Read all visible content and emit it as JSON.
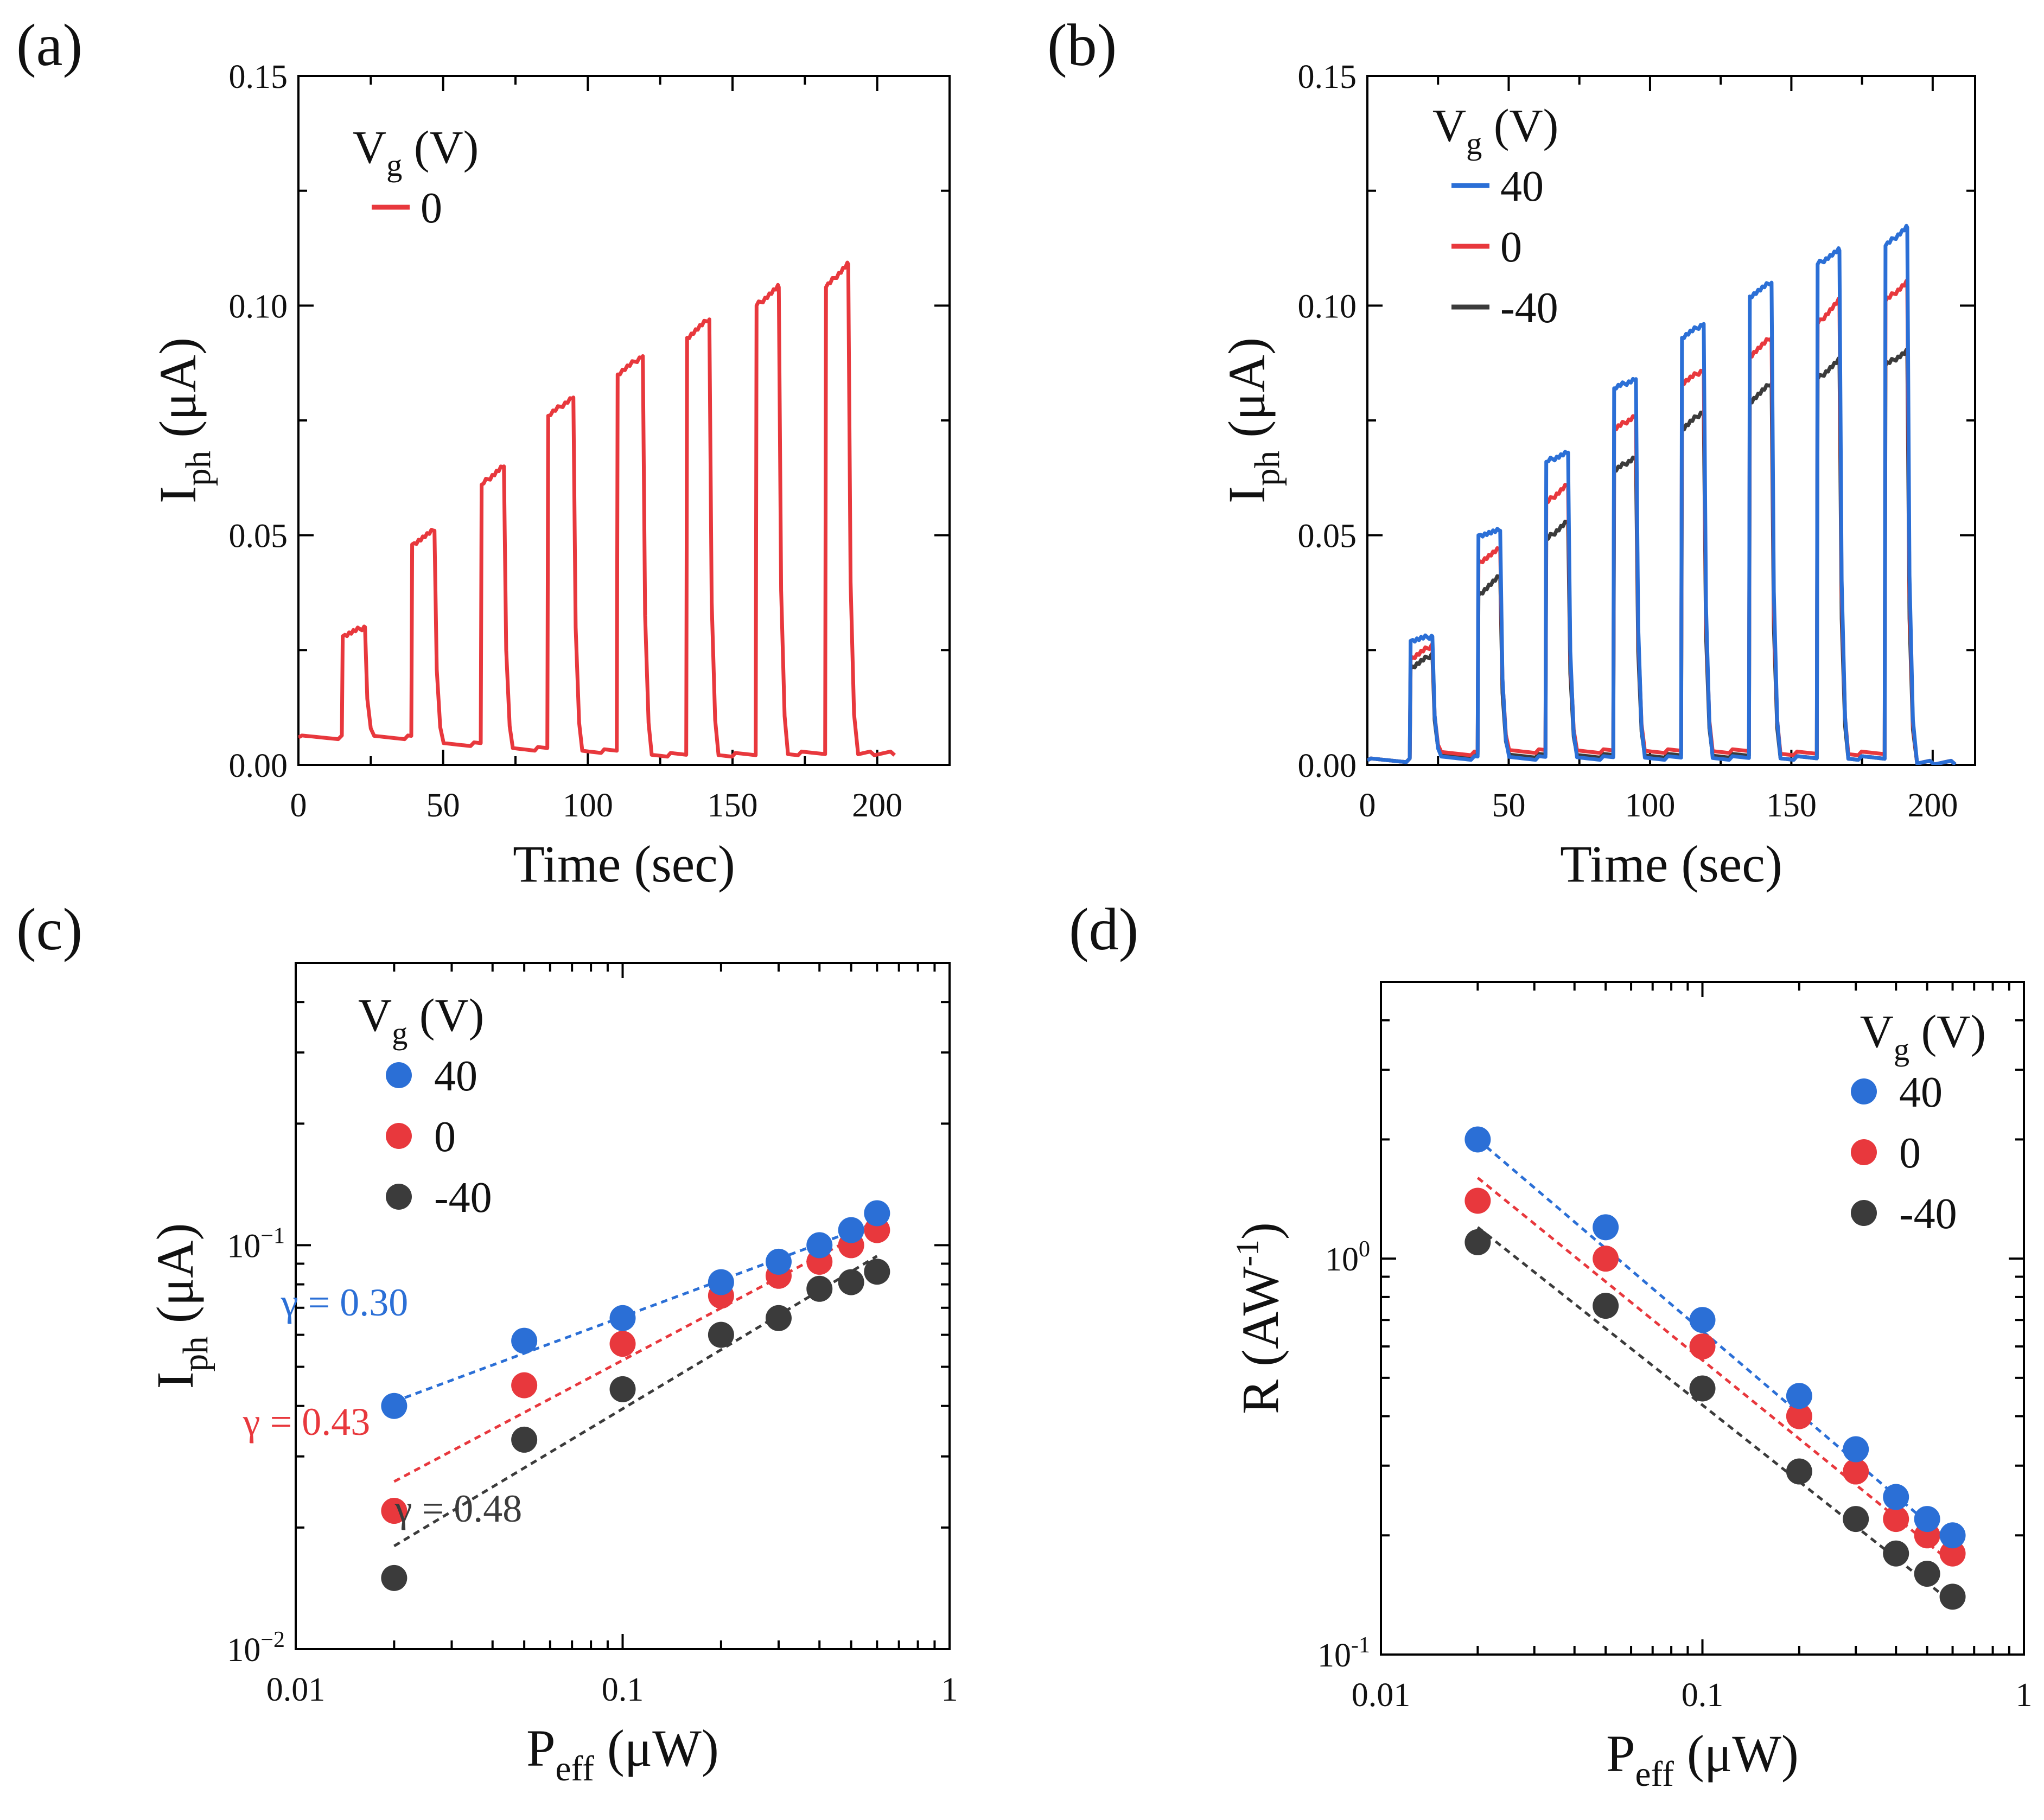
{
  "figure": {
    "panel_labels": [
      "(a)",
      "(b)",
      "(c)",
      "(d)"
    ]
  },
  "chart_data": [
    {
      "panel": "(a)",
      "type": "line",
      "title": "",
      "xlabel": "Time (sec)",
      "ylabel": "I_ph (μA)",
      "ylabel_main": "I",
      "ylabel_sub": "ph",
      "ylabel_rest": " (μA)",
      "xlim": [
        0,
        225
      ],
      "ylim": [
        0.0,
        0.15
      ],
      "xticks": [
        0,
        50,
        100,
        150,
        200
      ],
      "xtick_labels": [
        "0",
        "50",
        "100",
        "150",
        "200"
      ],
      "yticks": [
        0.0,
        0.05,
        0.1,
        0.15
      ],
      "ytick_labels": [
        "0.00",
        "0.05",
        "0.10",
        "0.15"
      ],
      "legend": {
        "title_main": "V",
        "title_sub": "g",
        "title_rest": " (V)",
        "position": "top-left"
      },
      "pulses": {
        "on_times": [
          15,
          39,
          63,
          86,
          110,
          134,
          158,
          182
        ],
        "off_times": [
          23,
          47,
          71,
          95,
          119,
          142,
          166,
          190
        ],
        "end_time": 206
      },
      "series": [
        {
          "name": "0",
          "color": "#e8383d",
          "baseline": [
            0.006,
            0.006,
            0.0045,
            0.0035,
            0.003,
            0.0022,
            0.0022,
            0.0025,
            0.0025
          ],
          "pulse_start": [
            0.028,
            0.048,
            0.061,
            0.076,
            0.085,
            0.093,
            0.1,
            0.104
          ],
          "pulse_end": [
            0.03,
            0.051,
            0.065,
            0.08,
            0.089,
            0.097,
            0.104,
            0.109
          ]
        }
      ]
    },
    {
      "panel": "(b)",
      "type": "line",
      "title": "",
      "xlabel": "Time (sec)",
      "ylabel": "I_ph (μA)",
      "ylabel_main": "I",
      "ylabel_sub": "ph",
      "ylabel_rest": " (μA)",
      "xlim": [
        0,
        215
      ],
      "ylim": [
        0.0,
        0.15
      ],
      "xticks": [
        0,
        50,
        100,
        150,
        200
      ],
      "xtick_labels": [
        "0",
        "50",
        "100",
        "150",
        "200"
      ],
      "yticks": [
        0.0,
        0.05,
        0.1,
        0.15
      ],
      "ytick_labels": [
        "0.00",
        "0.05",
        "0.10",
        "0.15"
      ],
      "legend": {
        "title_main": "V",
        "title_sub": "g",
        "title_rest": " (V)",
        "position": "top-left"
      },
      "pulses": {
        "on_times": [
          15,
          39,
          63,
          87,
          111,
          135,
          159,
          183
        ],
        "off_times": [
          23,
          47,
          71,
          95,
          119,
          143,
          167,
          191
        ],
        "end_time": 208
      },
      "series": [
        {
          "name": "40",
          "color": "#2b6fd6",
          "baseline": [
            0.001,
            0.0015,
            0.0015,
            0.0015,
            0.0015,
            0.0015,
            0.0015,
            0.0015,
            0.0005
          ],
          "pulse_start": [
            0.027,
            0.05,
            0.066,
            0.082,
            0.093,
            0.102,
            0.109,
            0.113
          ],
          "pulse_end": [
            0.028,
            0.051,
            0.068,
            0.084,
            0.096,
            0.105,
            0.112,
            0.117
          ]
        },
        {
          "name": "0",
          "color": "#e8383d",
          "baseline": [
            0.001,
            0.0025,
            0.003,
            0.003,
            0.003,
            0.003,
            0.0025,
            0.0025,
            0.0005
          ],
          "pulse_start": [
            0.023,
            0.044,
            0.057,
            0.073,
            0.083,
            0.089,
            0.096,
            0.101
          ],
          "pulse_end": [
            0.026,
            0.047,
            0.061,
            0.076,
            0.086,
            0.093,
            0.101,
            0.105
          ]
        },
        {
          "name": "-40",
          "color": "#3b3b3b",
          "baseline": [
            0.001,
            0.002,
            0.002,
            0.002,
            0.002,
            0.002,
            0.0015,
            0.0015,
            0.0005
          ],
          "pulse_start": [
            0.021,
            0.037,
            0.049,
            0.064,
            0.073,
            0.079,
            0.084,
            0.087
          ],
          "pulse_end": [
            0.024,
            0.041,
            0.053,
            0.067,
            0.077,
            0.083,
            0.088,
            0.09
          ]
        }
      ]
    },
    {
      "panel": "(c)",
      "type": "scatter",
      "title": "",
      "xlabel": "P_eff (μW)",
      "xlabel_main": "P",
      "xlabel_sub": "eff",
      "xlabel_rest": " (μW)",
      "ylabel": "I_ph (μA)",
      "ylabel_main": "I",
      "ylabel_sub": "ph",
      "ylabel_rest": " (μA)",
      "xscale": "log",
      "yscale": "log",
      "xlim": [
        0.01,
        1
      ],
      "ylim": [
        0.01,
        0.5
      ],
      "xticks": [
        0.01,
        0.1,
        1
      ],
      "xtick_labels": [
        "0.01",
        "0.1",
        "1"
      ],
      "yticks": [
        0.01,
        0.1
      ],
      "ytick_labels": [
        {
          "base": "10",
          "exp": "−2"
        },
        {
          "base": "10",
          "exp": "−1"
        }
      ],
      "legend": {
        "title_main": "V",
        "title_sub": "g",
        "title_rest": " (V)",
        "position": "top-left"
      },
      "x": [
        0.02,
        0.05,
        0.1,
        0.2,
        0.3,
        0.4,
        0.5,
        0.6
      ],
      "series": [
        {
          "name": "40",
          "color": "#2b6fd6",
          "values": [
            0.04,
            0.058,
            0.066,
            0.081,
            0.091,
            0.1,
            0.109,
            0.12
          ]
        },
        {
          "name": "0",
          "color": "#e8383d",
          "values": [
            0.022,
            0.045,
            0.057,
            0.075,
            0.084,
            0.091,
            0.1,
            0.109
          ]
        },
        {
          "name": "-40",
          "color": "#3b3b3b",
          "values": [
            0.015,
            0.033,
            0.044,
            0.06,
            0.066,
            0.078,
            0.081,
            0.086
          ]
        }
      ],
      "fits": [
        {
          "series": "40",
          "label": "γ = 0.30",
          "x_range": [
            0.02,
            0.6
          ],
          "y_start": 0.041,
          "y_end": 0.114
        },
        {
          "series": "0",
          "label": "γ = 0.43",
          "x_range": [
            0.02,
            0.6
          ],
          "y_start": 0.026,
          "y_end": 0.112
        },
        {
          "series": "-40",
          "label": "γ = 0.48",
          "x_range": [
            0.02,
            0.6
          ],
          "y_start": 0.018,
          "y_end": 0.094
        }
      ]
    },
    {
      "panel": "(d)",
      "type": "scatter",
      "title": "",
      "xlabel": "P_eff (μW)",
      "xlabel_main": "P",
      "xlabel_sub": "eff",
      "xlabel_rest": " (μW)",
      "ylabel": "R (AW^-1)",
      "ylabel_main": "R (AW",
      "ylabel_sup": "-1",
      "ylabel_rest": ")",
      "xscale": "log",
      "yscale": "log",
      "xlim": [
        0.01,
        1
      ],
      "ylim": [
        0.1,
        5
      ],
      "xticks": [
        0.01,
        0.1,
        1
      ],
      "xtick_labels": [
        "0.01",
        "0.1",
        "1"
      ],
      "yticks": [
        0.1,
        1
      ],
      "ytick_labels": [
        {
          "base": "10",
          "exp": "-1"
        },
        {
          "base": "10",
          "exp": "0"
        }
      ],
      "legend": {
        "title_main": "V",
        "title_sub": "g",
        "title_rest": " (V)",
        "position": "top-right"
      },
      "x": [
        0.02,
        0.05,
        0.1,
        0.2,
        0.3,
        0.4,
        0.5,
        0.6
      ],
      "series": [
        {
          "name": "40",
          "color": "#2b6fd6",
          "values": [
            2.0,
            1.2,
            0.7,
            0.45,
            0.33,
            0.25,
            0.22,
            0.2
          ]
        },
        {
          "name": "0",
          "color": "#e8383d",
          "values": [
            1.4,
            1.0,
            0.6,
            0.4,
            0.29,
            0.22,
            0.2,
            0.18
          ]
        },
        {
          "name": "-40",
          "color": "#3b3b3b",
          "values": [
            1.1,
            0.76,
            0.47,
            0.29,
            0.22,
            0.18,
            0.16,
            0.14
          ]
        }
      ],
      "fits": [
        {
          "series": "40",
          "label": "",
          "x_range": [
            0.02,
            0.6
          ],
          "y_start": 2.0,
          "y_end": 0.19
        },
        {
          "series": "0",
          "label": "",
          "x_range": [
            0.02,
            0.6
          ],
          "y_start": 1.6,
          "y_end": 0.17
        },
        {
          "series": "-40",
          "label": "",
          "x_range": [
            0.02,
            0.6
          ],
          "y_start": 1.2,
          "y_end": 0.135
        }
      ]
    }
  ]
}
